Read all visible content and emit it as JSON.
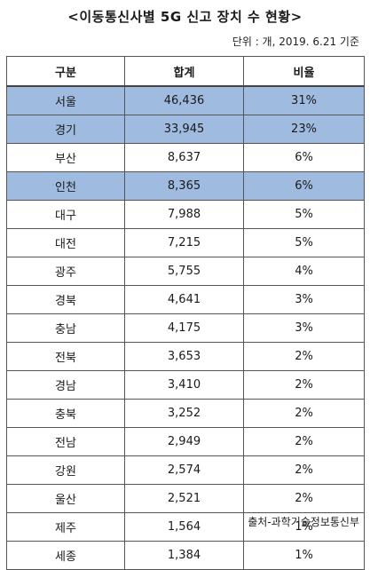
{
  "title": "<이동통신사별 5G 신고 장치 수 현황>",
  "unit": "단위 : 개, 2019. 6.21 기준",
  "source": "출처-과학기술정보통신부",
  "colors": {
    "highlight_row": "#9fbbe0",
    "border": "#555555"
  },
  "table": {
    "headers": [
      "구분",
      "합계",
      "비율"
    ],
    "rows": [
      {
        "region": "서울",
        "total": "46,436",
        "ratio": "31%",
        "highlight": true
      },
      {
        "region": "경기",
        "total": "33,945",
        "ratio": "23%",
        "highlight": true
      },
      {
        "region": "부산",
        "total": "8,637",
        "ratio": "6%",
        "highlight": false
      },
      {
        "region": "인천",
        "total": "8,365",
        "ratio": "6%",
        "highlight": true
      },
      {
        "region": "대구",
        "total": "7,988",
        "ratio": "5%",
        "highlight": false
      },
      {
        "region": "대전",
        "total": "7,215",
        "ratio": "5%",
        "highlight": false
      },
      {
        "region": "광주",
        "total": "5,755",
        "ratio": "4%",
        "highlight": false
      },
      {
        "region": "경북",
        "total": "4,641",
        "ratio": "3%",
        "highlight": false
      },
      {
        "region": "충남",
        "total": "4,175",
        "ratio": "3%",
        "highlight": false
      },
      {
        "region": "전북",
        "total": "3,653",
        "ratio": "2%",
        "highlight": false
      },
      {
        "region": "경남",
        "total": "3,410",
        "ratio": "2%",
        "highlight": false
      },
      {
        "region": "충북",
        "total": "3,252",
        "ratio": "2%",
        "highlight": false
      },
      {
        "region": "전남",
        "total": "2,949",
        "ratio": "2%",
        "highlight": false
      },
      {
        "region": "강원",
        "total": "2,574",
        "ratio": "2%",
        "highlight": false
      },
      {
        "region": "울산",
        "total": "2,521",
        "ratio": "2%",
        "highlight": false
      },
      {
        "region": "제주",
        "total": "1,564",
        "ratio": "1%",
        "highlight": false
      },
      {
        "region": "세종",
        "total": "1,384",
        "ratio": "1%",
        "highlight": false
      }
    ]
  }
}
